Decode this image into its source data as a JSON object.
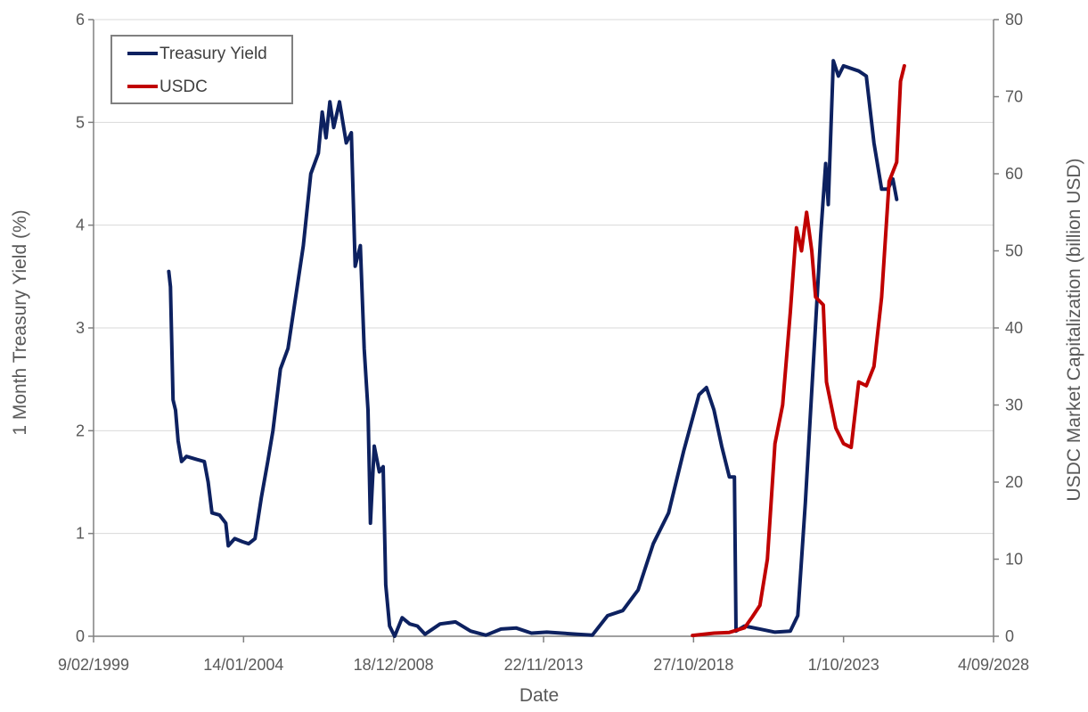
{
  "chart_data": {
    "type": "line",
    "title": "",
    "xlabel": "Date",
    "ylabel_left": "1 Month Treasury Yield (%)",
    "ylabel_right": "USDC Market Capitalization (billion USD)",
    "x_ticks": [
      "9/02/1999",
      "14/01/2004",
      "18/12/2008",
      "22/11/2013",
      "27/10/2018",
      "1/10/2023",
      "4/09/2028"
    ],
    "xlim": [
      "1999-02-09",
      "2028-09-04"
    ],
    "ylim_left": [
      0,
      6
    ],
    "yticks_left": [
      "0",
      "1",
      "2",
      "3",
      "4",
      "5",
      "6"
    ],
    "ylim_right": [
      0,
      80
    ],
    "yticks_right": [
      "0",
      "10",
      "20",
      "30",
      "40",
      "50",
      "60",
      "70",
      "80"
    ],
    "grid": true,
    "legend_position": "top-left",
    "series": [
      {
        "name": "Treasury Yield",
        "axis": "left",
        "color": "#0d2160",
        "points": [
          [
            "2001-07-31",
            3.55
          ],
          [
            "2001-08-20",
            3.4
          ],
          [
            "2001-09-20",
            2.3
          ],
          [
            "2001-10-20",
            2.2
          ],
          [
            "2001-11-20",
            1.9
          ],
          [
            "2001-12-31",
            1.7
          ],
          [
            "2002-02-28",
            1.75
          ],
          [
            "2002-06-30",
            1.72
          ],
          [
            "2002-09-30",
            1.7
          ],
          [
            "2002-11-15",
            1.5
          ],
          [
            "2002-12-31",
            1.2
          ],
          [
            "2003-03-31",
            1.18
          ],
          [
            "2003-06-15",
            1.1
          ],
          [
            "2003-07-15",
            0.88
          ],
          [
            "2003-09-30",
            0.95
          ],
          [
            "2003-12-31",
            0.92
          ],
          [
            "2004-03-15",
            0.9
          ],
          [
            "2004-05-31",
            0.95
          ],
          [
            "2004-08-15",
            1.35
          ],
          [
            "2004-10-31",
            1.7
          ],
          [
            "2004-12-31",
            2.0
          ],
          [
            "2005-03-31",
            2.6
          ],
          [
            "2005-06-30",
            2.8
          ],
          [
            "2005-09-30",
            3.3
          ],
          [
            "2005-12-31",
            3.8
          ],
          [
            "2006-03-31",
            4.5
          ],
          [
            "2006-06-30",
            4.7
          ],
          [
            "2006-08-15",
            5.1
          ],
          [
            "2006-09-30",
            4.85
          ],
          [
            "2006-11-15",
            5.2
          ],
          [
            "2006-12-31",
            4.95
          ],
          [
            "2007-03-10",
            5.2
          ],
          [
            "2007-05-31",
            4.8
          ],
          [
            "2007-07-31",
            4.9
          ],
          [
            "2007-09-15",
            3.6
          ],
          [
            "2007-11-15",
            3.8
          ],
          [
            "2007-12-31",
            2.8
          ],
          [
            "2008-02-15",
            2.2
          ],
          [
            "2008-03-15",
            1.1
          ],
          [
            "2008-04-30",
            1.85
          ],
          [
            "2008-06-30",
            1.6
          ],
          [
            "2008-08-15",
            1.65
          ],
          [
            "2008-09-15",
            0.5
          ],
          [
            "2008-10-31",
            0.1
          ],
          [
            "2008-12-31",
            0.0
          ],
          [
            "2009-03-31",
            0.18
          ],
          [
            "2009-06-30",
            0.12
          ],
          [
            "2009-09-30",
            0.1
          ],
          [
            "2009-12-31",
            0.02
          ],
          [
            "2010-06-30",
            0.12
          ],
          [
            "2010-12-31",
            0.14
          ],
          [
            "2011-06-30",
            0.05
          ],
          [
            "2011-12-31",
            0.01
          ],
          [
            "2012-06-30",
            0.07
          ],
          [
            "2012-12-31",
            0.08
          ],
          [
            "2013-06-30",
            0.03
          ],
          [
            "2013-12-31",
            0.04
          ],
          [
            "2014-12-31",
            0.02
          ],
          [
            "2015-06-30",
            0.01
          ],
          [
            "2015-12-31",
            0.2
          ],
          [
            "2016-06-30",
            0.25
          ],
          [
            "2016-12-31",
            0.45
          ],
          [
            "2017-06-30",
            0.9
          ],
          [
            "2017-12-31",
            1.2
          ],
          [
            "2018-06-30",
            1.8
          ],
          [
            "2018-12-31",
            2.35
          ],
          [
            "2019-03-31",
            2.42
          ],
          [
            "2019-06-30",
            2.2
          ],
          [
            "2019-09-30",
            1.85
          ],
          [
            "2019-12-31",
            1.55
          ],
          [
            "2020-02-29",
            1.55
          ],
          [
            "2020-03-20",
            0.05
          ],
          [
            "2020-06-30",
            0.1
          ],
          [
            "2020-12-31",
            0.07
          ],
          [
            "2021-06-30",
            0.04
          ],
          [
            "2021-12-31",
            0.05
          ],
          [
            "2022-03-31",
            0.2
          ],
          [
            "2022-06-30",
            1.3
          ],
          [
            "2022-09-30",
            2.6
          ],
          [
            "2022-12-31",
            3.9
          ],
          [
            "2023-02-28",
            4.6
          ],
          [
            "2023-03-31",
            4.2
          ],
          [
            "2023-05-31",
            5.6
          ],
          [
            "2023-07-31",
            5.45
          ],
          [
            "2023-09-30",
            5.55
          ],
          [
            "2024-03-31",
            5.5
          ],
          [
            "2024-06-30",
            5.45
          ],
          [
            "2024-09-30",
            4.8
          ],
          [
            "2024-12-31",
            4.35
          ],
          [
            "2025-03-15",
            4.35
          ],
          [
            "2025-05-15",
            4.45
          ],
          [
            "2025-06-30",
            4.25
          ]
        ]
      },
      {
        "name": "USDC",
        "axis": "right",
        "color": "#c00000",
        "points": [
          [
            "2018-10-15",
            0.1
          ],
          [
            "2019-06-30",
            0.4
          ],
          [
            "2019-12-31",
            0.5
          ],
          [
            "2020-06-30",
            1.1
          ],
          [
            "2020-09-30",
            2.5
          ],
          [
            "2020-12-31",
            4.0
          ],
          [
            "2021-03-31",
            10.0
          ],
          [
            "2021-06-30",
            25.0
          ],
          [
            "2021-09-30",
            30.0
          ],
          [
            "2021-12-31",
            42.0
          ],
          [
            "2022-03-15",
            53.0
          ],
          [
            "2022-05-15",
            50.0
          ],
          [
            "2022-07-15",
            55.0
          ],
          [
            "2022-09-15",
            50.0
          ],
          [
            "2022-10-31",
            44.0
          ],
          [
            "2023-01-31",
            43.0
          ],
          [
            "2023-03-10",
            33.0
          ],
          [
            "2023-06-30",
            27.0
          ],
          [
            "2023-09-30",
            25.0
          ],
          [
            "2023-12-31",
            24.5
          ],
          [
            "2024-03-31",
            33.0
          ],
          [
            "2024-06-30",
            32.5
          ],
          [
            "2024-09-30",
            35.0
          ],
          [
            "2024-12-31",
            44.0
          ],
          [
            "2025-03-31",
            59.0
          ],
          [
            "2025-06-30",
            61.5
          ],
          [
            "2025-08-15",
            72.0
          ],
          [
            "2025-09-30",
            74.0
          ]
        ]
      }
    ]
  }
}
